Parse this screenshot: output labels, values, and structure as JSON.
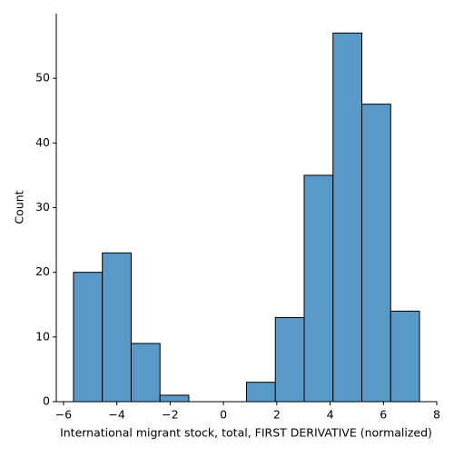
{
  "chart_data": {
    "type": "histogram",
    "xlabel": "International migrant stock, total, FIRST DERIVATIVE (normalized)",
    "ylabel": "Count",
    "bins": [
      -5.625,
      -4.543,
      -3.462,
      -2.38,
      -1.299,
      -0.217,
      0.864,
      1.946,
      3.027,
      4.109,
      5.19,
      6.272,
      7.353
    ],
    "counts": [
      20,
      23,
      9,
      1,
      0,
      0,
      3,
      13,
      35,
      57,
      46,
      14
    ],
    "color": "#5799c7",
    "edgecolor": "#000000",
    "xlim": [
      -6.27,
      8.0
    ],
    "ylim": [
      0,
      60
    ],
    "xticks": [
      {
        "value": -6,
        "label": "−6"
      },
      {
        "value": -4,
        "label": "−4"
      },
      {
        "value": -2,
        "label": "−2"
      },
      0,
      2,
      4,
      6,
      8
    ],
    "yticks": [
      0,
      10,
      20,
      30,
      40,
      50
    ]
  }
}
